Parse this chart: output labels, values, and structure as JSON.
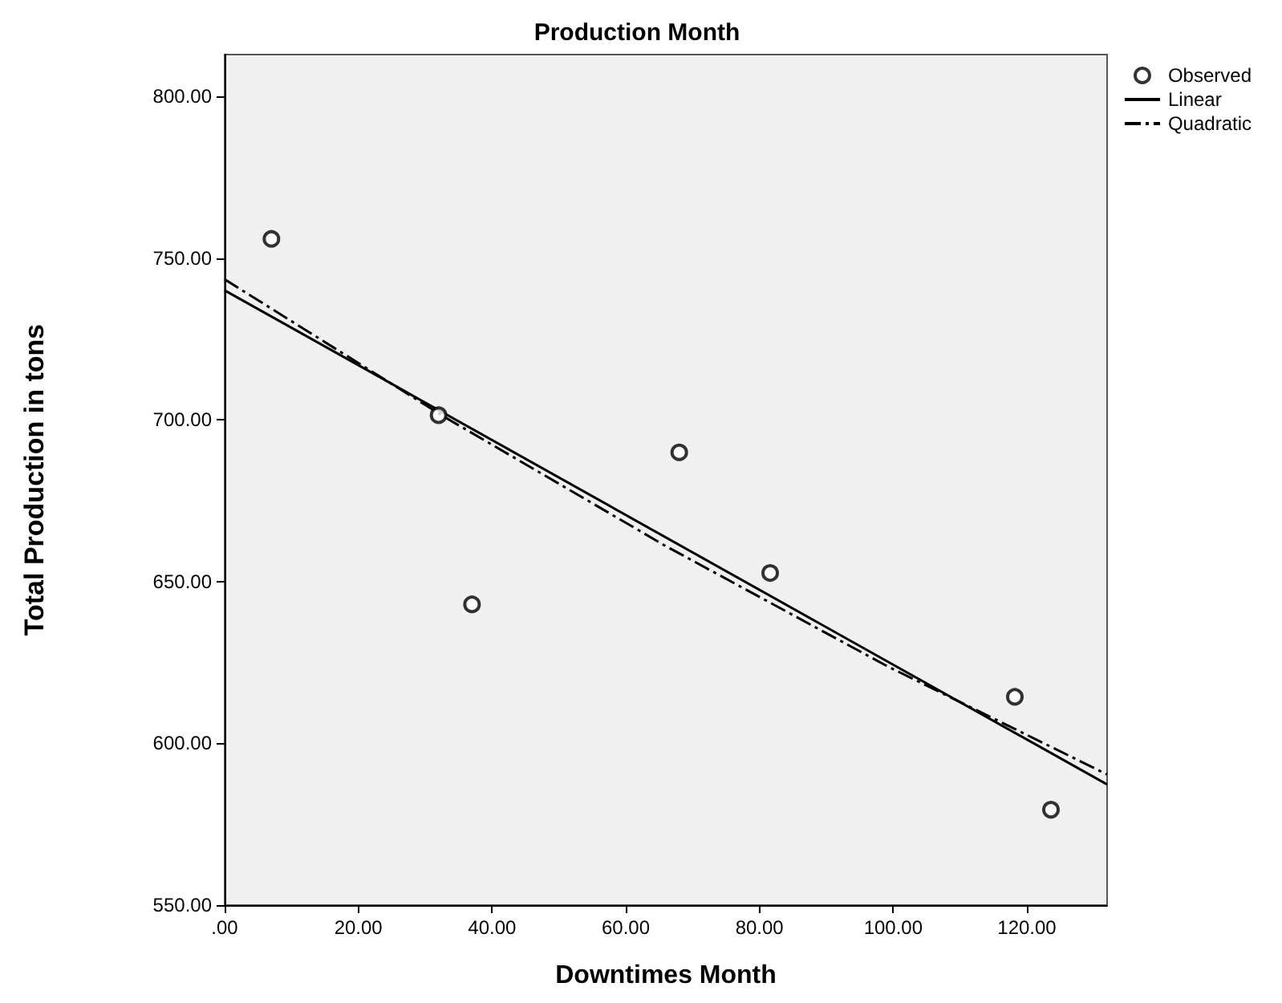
{
  "chart_data": {
    "type": "scatter",
    "title": "Production Month",
    "xlabel": "Downtimes Month",
    "ylabel": "Total Production in tons",
    "xlim": [
      0,
      132
    ],
    "ylim": [
      550,
      813
    ],
    "xticks": [
      {
        "value": 0,
        "label": ".00"
      },
      {
        "value": 20,
        "label": "20.00"
      },
      {
        "value": 40,
        "label": "40.00"
      },
      {
        "value": 60,
        "label": "60.00"
      },
      {
        "value": 80,
        "label": "80.00"
      },
      {
        "value": 100,
        "label": "100.00"
      },
      {
        "value": 120,
        "label": "120.00"
      }
    ],
    "yticks": [
      {
        "value": 550,
        "label": "550.00"
      },
      {
        "value": 600,
        "label": "600.00"
      },
      {
        "value": 650,
        "label": "650.00"
      },
      {
        "value": 700,
        "label": "700.00"
      },
      {
        "value": 750,
        "label": "750.00"
      },
      {
        "value": 800,
        "label": "800.00"
      }
    ],
    "grid": false,
    "legend": "top right",
    "series": [
      {
        "name": "Observed",
        "marker": "circle",
        "color": "#000000",
        "x": [
          7,
          32,
          37,
          68,
          81.6,
          118.2,
          123.6
        ],
        "values": [
          756,
          701.5,
          643,
          690,
          652.7,
          614.4,
          579.5
        ]
      },
      {
        "name": "Linear",
        "type": "line",
        "marker": "none",
        "line_style": "solid",
        "color": "#000000",
        "x": [
          0,
          132
        ],
        "values": [
          740.1,
          587.3
        ]
      },
      {
        "name": "Quadratic",
        "type": "line",
        "marker": "none",
        "line_style": "dashed",
        "color": "#000000",
        "x": [
          0,
          33,
          66,
          99,
          132
        ],
        "values": [
          743.5,
          700.8,
          661,
          624,
          590.4
        ]
      }
    ]
  }
}
